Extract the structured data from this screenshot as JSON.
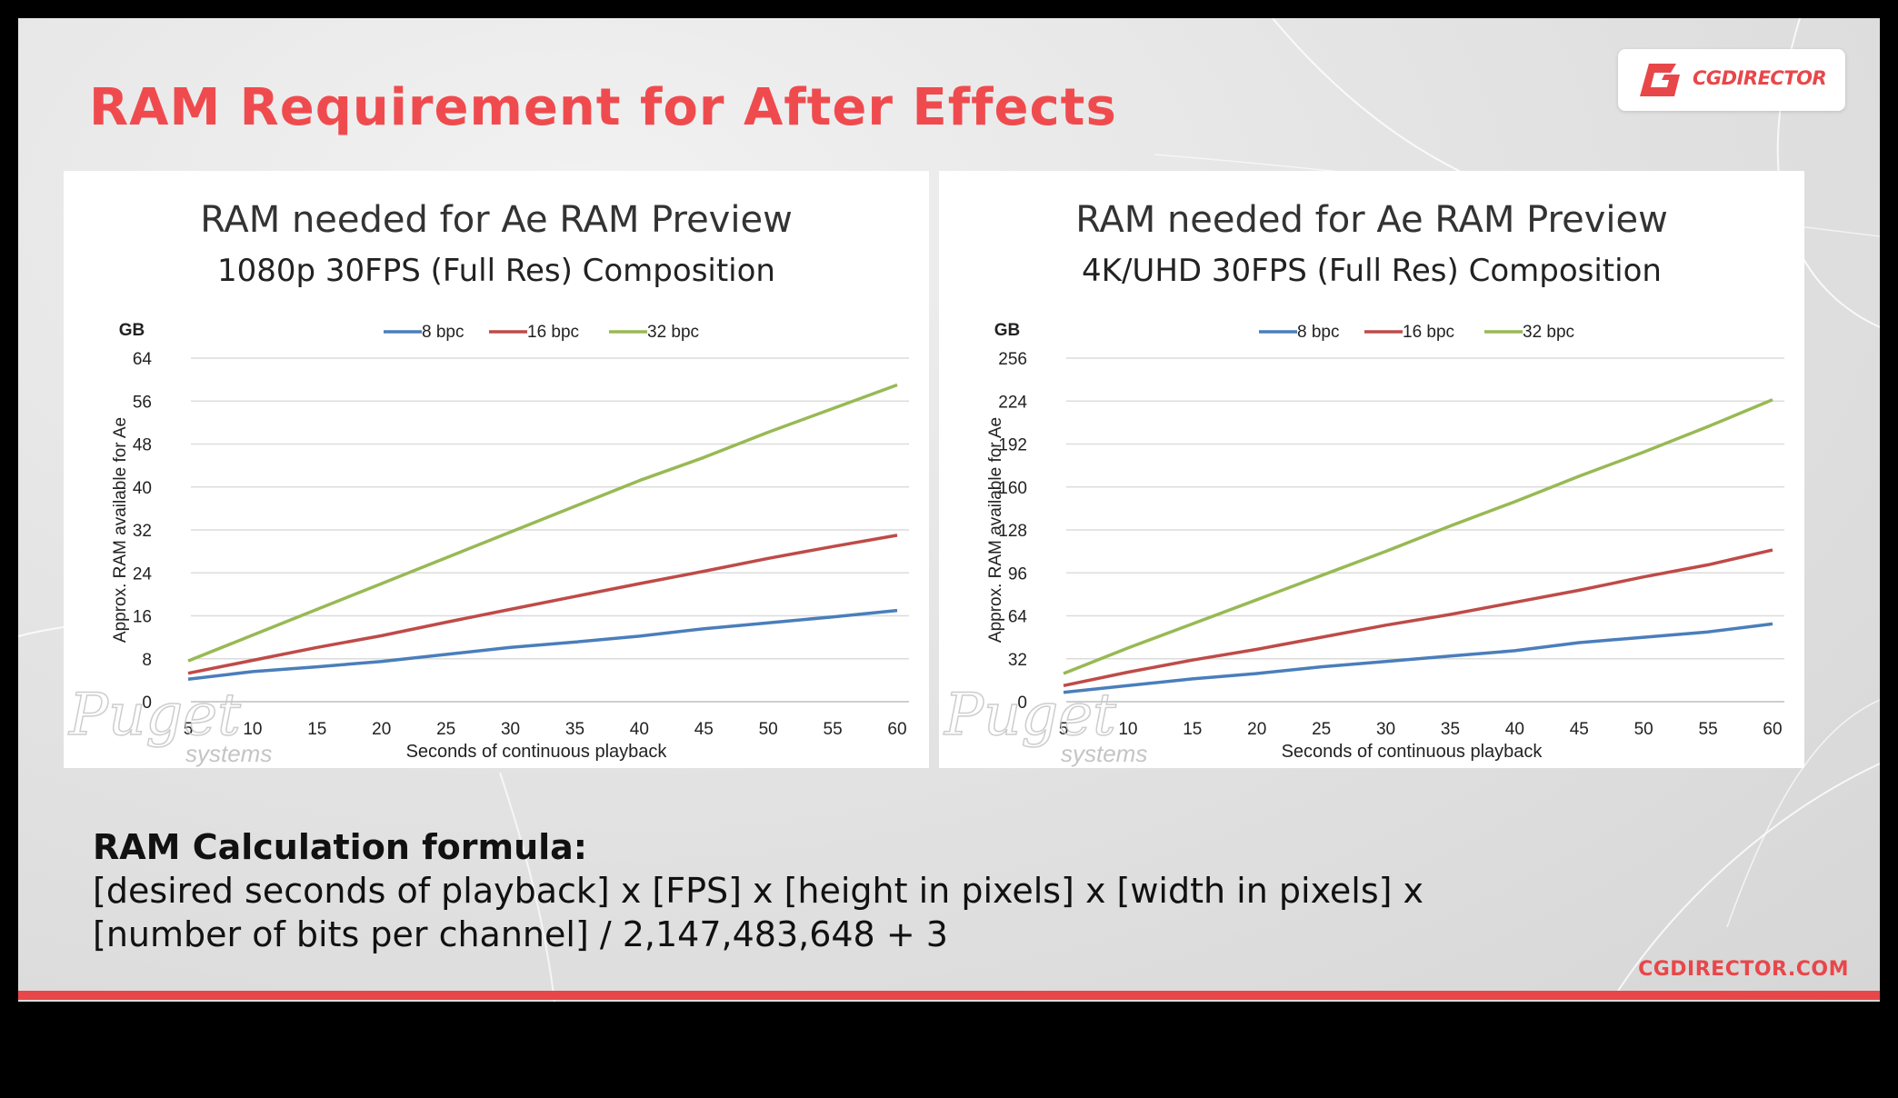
{
  "page": {
    "title": "RAM Requirement for After Effects",
    "brand": "CGDIRECTOR",
    "website": "CGDIRECTOR.COM",
    "accent_color": "#ef4b4e"
  },
  "formula": {
    "heading": "RAM Calculation formula:",
    "line1": "[desired seconds of playback] x [FPS] x [height in pixels] x [width in pixels] x",
    "line2": "[number of bits per channel] / 2,147,483,648 + 3"
  },
  "chart_data": [
    {
      "type": "line",
      "title": "RAM needed for Ae RAM Preview",
      "subtitle": "1080p 30FPS (Full Res) Composition",
      "xlabel": "Seconds of continuous playback",
      "ylabel": "Approx. RAM available for Ae",
      "yunit": "GB",
      "x": [
        5,
        10,
        15,
        20,
        25,
        30,
        35,
        40,
        45,
        50,
        55,
        60
      ],
      "xlim": [
        5,
        60
      ],
      "ylim": [
        0,
        64
      ],
      "yticks": [
        0,
        8,
        16,
        24,
        32,
        40,
        48,
        56,
        64
      ],
      "grid": true,
      "legend_position": "top",
      "watermark": [
        "Puget",
        "systems"
      ],
      "series": [
        {
          "name": "8 bpc",
          "color": "#4a7ebb",
          "values": [
            4.2,
            5.6,
            6.5,
            7.5,
            8.8,
            10.1,
            11.1,
            12.2,
            13.6,
            14.7,
            15.8,
            17.0
          ]
        },
        {
          "name": "16 bpc",
          "color": "#be4b48",
          "values": [
            5.3,
            7.7,
            10.1,
            12.3,
            14.8,
            17.2,
            19.6,
            22.0,
            24.3,
            26.7,
            28.9,
            31.0
          ]
        },
        {
          "name": "32 bpc",
          "color": "#98b954",
          "values": [
            7.6,
            12.4,
            17.2,
            22.0,
            26.8,
            31.6,
            36.4,
            41.2,
            45.5,
            50.2,
            54.6,
            59.0
          ]
        }
      ]
    },
    {
      "type": "line",
      "title": "RAM needed for Ae RAM Preview",
      "subtitle": "4K/UHD 30FPS (Full Res) Composition",
      "xlabel": "Seconds of continuous playback",
      "ylabel": "Approx. RAM available for Ae",
      "yunit": "GB",
      "x": [
        5,
        10,
        15,
        20,
        25,
        30,
        35,
        40,
        45,
        50,
        55,
        60
      ],
      "xlim": [
        5,
        60
      ],
      "ylim": [
        0,
        256
      ],
      "yticks": [
        0,
        32,
        64,
        96,
        128,
        160,
        192,
        224,
        256
      ],
      "grid": true,
      "legend_position": "top",
      "watermark": [
        "Puget",
        "systems"
      ],
      "series": [
        {
          "name": "8 bpc",
          "color": "#4a7ebb",
          "values": [
            7,
            12,
            17,
            21,
            26,
            30,
            34,
            38,
            44,
            48,
            52,
            58
          ]
        },
        {
          "name": "16 bpc",
          "color": "#be4b48",
          "values": [
            12,
            22,
            31,
            39,
            48,
            57,
            65,
            74,
            83,
            93,
            102,
            113
          ]
        },
        {
          "name": "32 bpc",
          "color": "#98b954",
          "values": [
            21,
            40,
            58,
            76,
            94,
            112,
            131,
            149,
            168,
            186,
            205,
            225
          ]
        }
      ]
    }
  ]
}
